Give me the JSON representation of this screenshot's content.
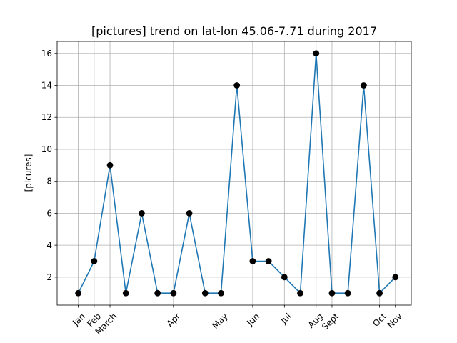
{
  "chart_data": {
    "type": "line",
    "title": "[pictures] trend on lat-lon 45.06-7.71 during 2017",
    "xlabel": "",
    "ylabel": "[picures]",
    "x": [
      0,
      1,
      2,
      3,
      4,
      5,
      6,
      7,
      8,
      9,
      10,
      11,
      12,
      13,
      14,
      15,
      16,
      17,
      18,
      19,
      20,
      21,
      22,
      23,
      24,
      25,
      26,
      27,
      28,
      29,
      30,
      31,
      32,
      33,
      34,
      35,
      36,
      37,
      38,
      39,
      40,
      41,
      42,
      43,
      44,
      45,
      46,
      47,
      48,
      49,
      50,
      51,
      52,
      53,
      54,
      55,
      56,
      57,
      58,
      59,
      60,
      61,
      62,
      63,
      64,
      65,
      66,
      67,
      68,
      69,
      70,
      71,
      72,
      73,
      74,
      75,
      76,
      77,
      78,
      79,
      80,
      81,
      82,
      83,
      84,
      85,
      86,
      87,
      88,
      89,
      90,
      91,
      92,
      93,
      94,
      95,
      96,
      97,
      98,
      99,
      100,
      101,
      102,
      103,
      104,
      105,
      106,
      107,
      108,
      109,
      110,
      111,
      112,
      113,
      114,
      115,
      116,
      117,
      118,
      119,
      120,
      121,
      122,
      123,
      124,
      125,
      126,
      127,
      128,
      129,
      130,
      131,
      132,
      133,
      134,
      135,
      136,
      137,
      138,
      139,
      140,
      141,
      142,
      143,
      144,
      145,
      146,
      147,
      148,
      149,
      150,
      151,
      152,
      153,
      154,
      155,
      156,
      157,
      158,
      159,
      160,
      161,
      162,
      163,
      164,
      165,
      166,
      167,
      168,
      169,
      170,
      171,
      172,
      173,
      174,
      175,
      176,
      177,
      178,
      179,
      180,
      181,
      182,
      183,
      184,
      185,
      186,
      187,
      188,
      189,
      190,
      191,
      192,
      193,
      194,
      195,
      196,
      197,
      198,
      199,
      200,
      201,
      202,
      203,
      204,
      205,
      206,
      207,
      208,
      209,
      210,
      211,
      212,
      213,
      214,
      215,
      216,
      217,
      218,
      219,
      220,
      221,
      222,
      223,
      224,
      225,
      226,
      227,
      228,
      229,
      230,
      231,
      232,
      233,
      234,
      235,
      236,
      237,
      238,
      239,
      240,
      241,
      242,
      243,
      244,
      245,
      246,
      247,
      248,
      249,
      250,
      251,
      252,
      253,
      254,
      255,
      256,
      257,
      258,
      259,
      260,
      261,
      262,
      263,
      264,
      265,
      266,
      267,
      268,
      269,
      270,
      271,
      272,
      273,
      274,
      275,
      276,
      277,
      278,
      279,
      280,
      281,
      282,
      283,
      284,
      285,
      286,
      287,
      288,
      289,
      290,
      291,
      292,
      293,
      294,
      295,
      296,
      297,
      298,
      299,
      300
    ],
    "points": [
      {
        "x": 0,
        "y": 1
      },
      {
        "x": 15,
        "y": 3
      },
      {
        "x": 30,
        "y": 9
      },
      {
        "x": 45,
        "y": 1
      },
      {
        "x": 60,
        "y": 6
      },
      {
        "x": 75,
        "y": 1
      },
      {
        "x": 90,
        "y": 1
      },
      {
        "x": 105,
        "y": 6
      },
      {
        "x": 120,
        "y": 1
      },
      {
        "x": 135,
        "y": 1
      },
      {
        "x": 150,
        "y": 14
      },
      {
        "x": 165,
        "y": 3
      },
      {
        "x": 180,
        "y": 3
      },
      {
        "x": 195,
        "y": 2
      },
      {
        "x": 210,
        "y": 1
      },
      {
        "x": 225,
        "y": 16
      },
      {
        "x": 240,
        "y": 1
      },
      {
        "x": 255,
        "y": 1
      },
      {
        "x": 270,
        "y": 14
      },
      {
        "x": 285,
        "y": 1
      },
      {
        "x": 300,
        "y": 2
      }
    ],
    "x_ticks": [
      {
        "x": 0,
        "label": "Jan"
      },
      {
        "x": 15,
        "label": "Feb"
      },
      {
        "x": 30,
        "label": "March"
      },
      {
        "x": 90,
        "label": "Apr"
      },
      {
        "x": 135,
        "label": "May"
      },
      {
        "x": 165,
        "label": "Jun"
      },
      {
        "x": 195,
        "label": "Jul"
      },
      {
        "x": 225,
        "label": "Aug"
      },
      {
        "x": 240,
        "label": "Sept"
      },
      {
        "x": 285,
        "label": "Oct"
      },
      {
        "x": 300,
        "label": "Nov"
      }
    ],
    "y_ticks": [
      2,
      4,
      6,
      8,
      10,
      12,
      14,
      16
    ],
    "xlim": [
      -20,
      315
    ],
    "ylim": [
      0.25,
      16.75
    ],
    "grid": true,
    "colors": {
      "line": "#1f77b4",
      "marker": "#000000",
      "grid": "#b0b0b0"
    }
  }
}
